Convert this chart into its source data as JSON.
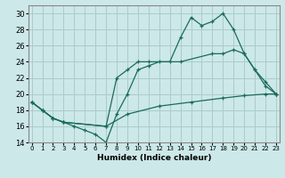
{
  "xlabel": "Humidex (Indice chaleur)",
  "bg_color": "#cce8e8",
  "grid_color": "#aacccc",
  "line_color": "#1a6b5a",
  "xlim": [
    0,
    23
  ],
  "ylim": [
    14,
    31
  ],
  "xticks": [
    0,
    1,
    2,
    3,
    4,
    5,
    6,
    7,
    8,
    9,
    10,
    11,
    12,
    13,
    14,
    15,
    16,
    17,
    18,
    19,
    20,
    21,
    22,
    23
  ],
  "yticks": [
    14,
    16,
    18,
    20,
    22,
    24,
    26,
    28,
    30
  ],
  "line1_x": [
    0,
    1,
    2,
    3,
    4,
    5,
    6,
    7,
    8,
    9,
    10,
    11,
    12,
    13,
    14,
    15,
    16,
    17,
    18,
    19,
    20,
    21,
    22,
    23
  ],
  "line1_y": [
    19,
    18,
    17,
    16.5,
    16,
    15.5,
    15,
    14,
    17.5,
    20,
    23,
    23.5,
    24,
    24,
    27,
    29.5,
    28.5,
    29,
    30,
    28,
    25,
    23,
    21,
    20
  ],
  "line2_x": [
    0,
    1,
    2,
    3,
    7,
    8,
    9,
    10,
    11,
    14,
    17,
    18,
    19,
    20,
    21,
    22,
    23
  ],
  "line2_y": [
    19,
    18,
    17,
    16.5,
    16,
    22,
    23,
    24,
    24,
    24,
    25,
    25,
    25.5,
    25,
    23,
    21.5,
    20
  ],
  "line3_x": [
    0,
    1,
    2,
    3,
    7,
    9,
    12,
    15,
    18,
    20,
    22,
    23
  ],
  "line3_y": [
    19,
    18,
    17,
    16.5,
    16,
    17.5,
    18.5,
    19,
    19.5,
    19.8,
    20,
    20
  ]
}
